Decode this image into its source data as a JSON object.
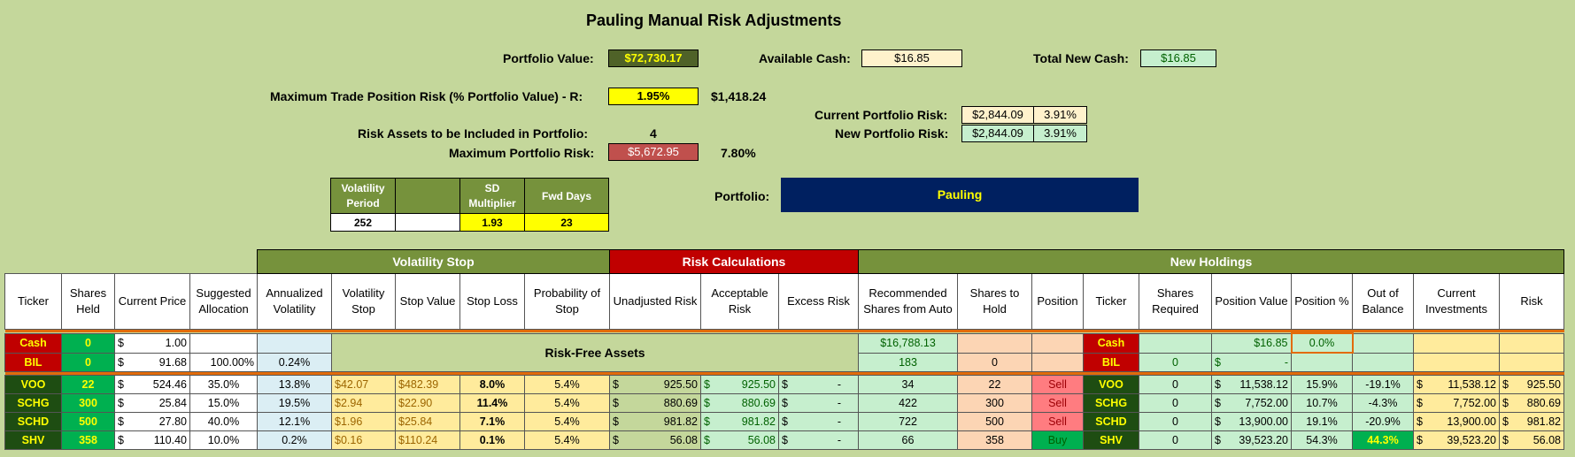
{
  "title": "Pauling Manual Risk Adjustments",
  "summary": {
    "portfolio_value_label": "Portfolio Value:",
    "portfolio_value": "$72,730.17",
    "available_cash_label": "Available Cash:",
    "available_cash": "$16.85",
    "total_new_cash_label": "Total New Cash:",
    "total_new_cash": "$16.85",
    "max_trade_risk_label": "Maximum Trade Position Risk (% Portfolio Value) - R:",
    "max_trade_risk_pct": "1.95%",
    "max_trade_risk_value": "$1,418.24",
    "current_risk_label": "Current Portfolio Risk:",
    "current_risk_value": "$2,844.09",
    "current_risk_pct": "3.91%",
    "new_risk_label": "New Portfolio Risk:",
    "new_risk_value": "$2,844.09",
    "new_risk_pct": "3.91%",
    "risk_assets_label": "Risk Assets to be Included in Portfolio:",
    "risk_assets": "4",
    "max_portfolio_risk_label": "Maximum Portfolio Risk:",
    "max_portfolio_risk_value": "$5,672.95",
    "max_portfolio_risk_pct": "7.80%",
    "portfolio_label": "Portfolio:",
    "portfolio_name": "Pauling"
  },
  "vol_params": {
    "h1": "Volatility Period",
    "h2": "",
    "h3": "SD Multiplier",
    "h4": "Fwd Days",
    "v1": "252",
    "v2": "",
    "v3": "1.93",
    "v4": "23"
  },
  "groups": {
    "vol_stop": "Volatility Stop",
    "risk_calc": "Risk Calculations",
    "new_holdings": "New Holdings"
  },
  "headers": [
    "Ticker",
    "Shares Held",
    "Current Price",
    "Suggested Allocation",
    "Annualized Volatility",
    "Volatility Stop",
    "Stop Value",
    "Stop Loss",
    "Probability of Stop",
    "Unadjusted Risk",
    "Acceptable Risk",
    "Excess Risk",
    "Recommended Shares from Auto",
    "Shares to Hold",
    "Position",
    "Ticker",
    "Shares Required",
    "Position Value",
    "Position %",
    "Out of Balance",
    "Current Investments",
    "Risk"
  ],
  "risk_free_label": "Risk-Free Assets",
  "cash_row": {
    "ticker": "Cash",
    "shares": "0",
    "price": "1.00",
    "alloc": "",
    "vol": "",
    "rec": "$16,788.13",
    "hold": "",
    "pos": "",
    "ticker2": "Cash",
    "req": "",
    "pv": "$16.85",
    "pct": "0.0%"
  },
  "bil_row": {
    "ticker": "BIL",
    "shares": "0",
    "price": "91.68",
    "alloc": "100.00%",
    "vol": "0.24%",
    "rec": "183",
    "hold": "0",
    "pos": "",
    "ticker2": "BIL",
    "req": "0",
    "pv": "-",
    "pct": ""
  },
  "rows": [
    {
      "ticker": "VOO",
      "shares": "22",
      "price": "524.46",
      "alloc": "35.0%",
      "vol": "13.8%",
      "vstop": "$42.07",
      "sval": "$482.39",
      "sloss": "8.0%",
      "prob": "5.4%",
      "unadj": "925.50",
      "acc": "925.50",
      "exc": "-",
      "rec": "34",
      "hold": "22",
      "pos": "Sell",
      "ticker2": "VOO",
      "req": "0",
      "pv": "11,538.12",
      "pct": "15.9%",
      "oob": "-19.1%",
      "ci": "11,538.12",
      "risk": "925.50"
    },
    {
      "ticker": "SCHG",
      "shares": "300",
      "price": "25.84",
      "alloc": "15.0%",
      "vol": "19.5%",
      "vstop": "$2.94",
      "sval": "$22.90",
      "sloss": "11.4%",
      "prob": "5.4%",
      "unadj": "880.69",
      "acc": "880.69",
      "exc": "-",
      "rec": "422",
      "hold": "300",
      "pos": "Sell",
      "ticker2": "SCHG",
      "req": "0",
      "pv": "7,752.00",
      "pct": "10.7%",
      "oob": "-4.3%",
      "ci": "7,752.00",
      "risk": "880.69"
    },
    {
      "ticker": "SCHD",
      "shares": "500",
      "price": "27.80",
      "alloc": "40.0%",
      "vol": "12.1%",
      "vstop": "$1.96",
      "sval": "$25.84",
      "sloss": "7.1%",
      "prob": "5.4%",
      "unadj": "981.82",
      "acc": "981.82",
      "exc": "-",
      "rec": "722",
      "hold": "500",
      "pos": "Sell",
      "ticker2": "SCHD",
      "req": "0",
      "pv": "13,900.00",
      "pct": "19.1%",
      "oob": "-20.9%",
      "ci": "13,900.00",
      "risk": "981.82"
    },
    {
      "ticker": "SHV",
      "shares": "358",
      "price": "110.40",
      "alloc": "10.0%",
      "vol": "0.2%",
      "vstop": "$0.16",
      "sval": "$110.24",
      "sloss": "0.1%",
      "prob": "5.4%",
      "unadj": "56.08",
      "acc": "56.08",
      "exc": "-",
      "rec": "66",
      "hold": "358",
      "pos": "Buy",
      "ticker2": "SHV",
      "req": "0",
      "pv": "39,523.20",
      "pct": "54.3%",
      "oob": "44.3%",
      "ci": "39,523.20",
      "risk": "56.08"
    }
  ],
  "colors": {
    "background": "#c4d79b",
    "dark_green": "#76923c",
    "navy": "#002060",
    "red_header": "#c00000"
  }
}
